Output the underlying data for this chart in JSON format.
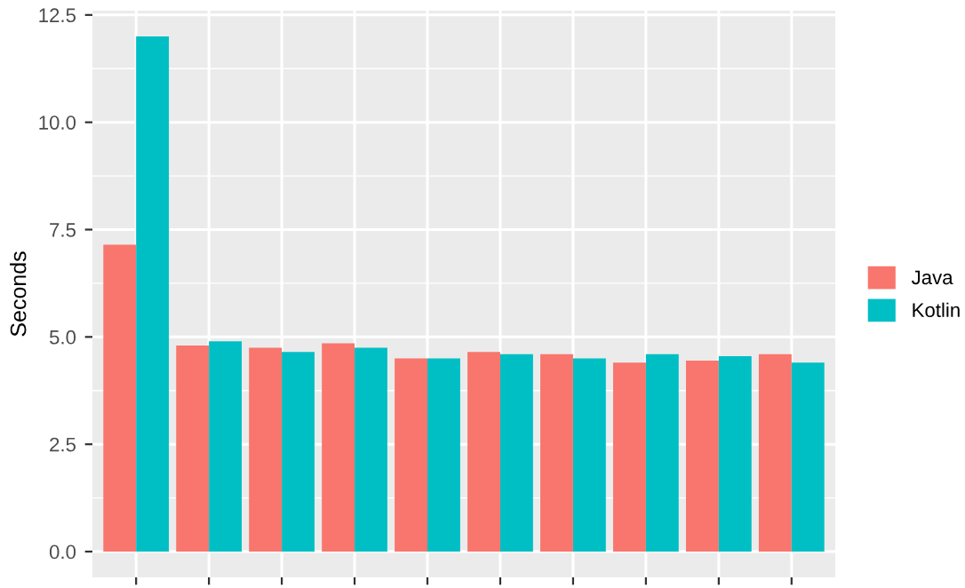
{
  "chart_data": {
    "type": "bar",
    "ylabel": "Seconds",
    "categories": [
      null,
      null,
      null,
      null,
      null,
      null,
      null,
      null,
      null,
      null
    ],
    "series": [
      {
        "name": "Java",
        "color": "#f8766d",
        "values": [
          7.15,
          4.8,
          4.75,
          4.85,
          4.5,
          4.65,
          4.6,
          4.4,
          4.45,
          4.6
        ]
      },
      {
        "name": "Kotlin",
        "color": "#00bfc4",
        "values": [
          12.0,
          4.9,
          4.65,
          4.75,
          4.5,
          4.6,
          4.5,
          4.6,
          4.55,
          4.4
        ]
      }
    ],
    "ylim": [
      -0.6,
      12.6
    ],
    "yticks": [
      {
        "value": 0,
        "label": "0.0"
      },
      {
        "value": 2.5,
        "label": "2.5"
      },
      {
        "value": 5,
        "label": "5.0"
      },
      {
        "value": 7.5,
        "label": "7.5"
      },
      {
        "value": 10,
        "label": "10.0"
      },
      {
        "value": 12.5,
        "label": "12.5"
      }
    ],
    "grid": true,
    "legend": "right"
  }
}
